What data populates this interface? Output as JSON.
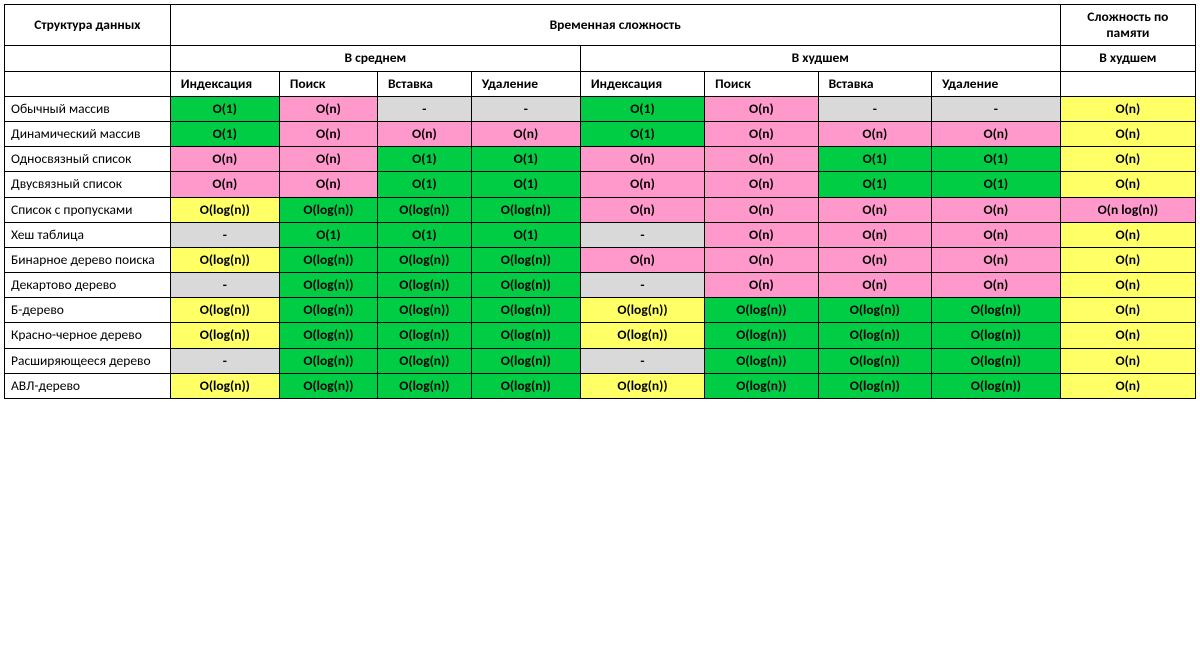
{
  "colors": {
    "green": "#00cc44",
    "yellow": "#ffff66",
    "pink": "#ff99cc",
    "gray": "#d9d9d9",
    "white": "#ffffff"
  },
  "colWidths": {
    "label": 152,
    "avg": [
      100,
      90,
      86,
      100
    ],
    "worst": [
      114,
      104,
      104,
      118
    ],
    "space": 124
  },
  "headers": {
    "structure": "Структура данных",
    "time": "Временная сложность",
    "space": "Сложность по памяти",
    "average": "В среднем",
    "worst": "В худшем",
    "spaceWorst": "В худшем",
    "ops": [
      "Индексация",
      "Поиск",
      "Вставка",
      "Удаление"
    ]
  },
  "rows": [
    {
      "name": "Обычный массив",
      "avg": [
        {
          "v": "O(1)",
          "c": "green"
        },
        {
          "v": "O(n)",
          "c": "pink"
        },
        {
          "v": "-",
          "c": "gray"
        },
        {
          "v": "-",
          "c": "gray"
        }
      ],
      "worst": [
        {
          "v": "O(1)",
          "c": "green"
        },
        {
          "v": "O(n)",
          "c": "pink"
        },
        {
          "v": "-",
          "c": "gray"
        },
        {
          "v": "-",
          "c": "gray"
        }
      ],
      "space": {
        "v": "O(n)",
        "c": "yellow"
      }
    },
    {
      "name": "Динамический массив",
      "avg": [
        {
          "v": "O(1)",
          "c": "green"
        },
        {
          "v": "O(n)",
          "c": "pink"
        },
        {
          "v": "O(n)",
          "c": "pink"
        },
        {
          "v": "O(n)",
          "c": "pink"
        }
      ],
      "worst": [
        {
          "v": "O(1)",
          "c": "green"
        },
        {
          "v": "O(n)",
          "c": "pink"
        },
        {
          "v": "O(n)",
          "c": "pink"
        },
        {
          "v": "O(n)",
          "c": "pink"
        }
      ],
      "space": {
        "v": "O(n)",
        "c": "yellow"
      }
    },
    {
      "name": "Односвязный список",
      "avg": [
        {
          "v": "O(n)",
          "c": "pink"
        },
        {
          "v": "O(n)",
          "c": "pink"
        },
        {
          "v": "O(1)",
          "c": "green"
        },
        {
          "v": "O(1)",
          "c": "green"
        }
      ],
      "worst": [
        {
          "v": "O(n)",
          "c": "pink"
        },
        {
          "v": "O(n)",
          "c": "pink"
        },
        {
          "v": "O(1)",
          "c": "green"
        },
        {
          "v": "O(1)",
          "c": "green"
        }
      ],
      "space": {
        "v": "O(n)",
        "c": "yellow"
      }
    },
    {
      "name": "Двусвязный список",
      "avg": [
        {
          "v": "O(n)",
          "c": "pink"
        },
        {
          "v": "O(n)",
          "c": "pink"
        },
        {
          "v": "O(1)",
          "c": "green"
        },
        {
          "v": "O(1)",
          "c": "green"
        }
      ],
      "worst": [
        {
          "v": "O(n)",
          "c": "pink"
        },
        {
          "v": "O(n)",
          "c": "pink"
        },
        {
          "v": "O(1)",
          "c": "green"
        },
        {
          "v": "O(1)",
          "c": "green"
        }
      ],
      "space": {
        "v": "O(n)",
        "c": "yellow"
      }
    },
    {
      "name": "Список с пропусками",
      "avg": [
        {
          "v": "O(log(n))",
          "c": "yellow"
        },
        {
          "v": "O(log(n))",
          "c": "green"
        },
        {
          "v": "O(log(n))",
          "c": "green"
        },
        {
          "v": "O(log(n))",
          "c": "green"
        }
      ],
      "worst": [
        {
          "v": "O(n)",
          "c": "pink"
        },
        {
          "v": "O(n)",
          "c": "pink"
        },
        {
          "v": "O(n)",
          "c": "pink"
        },
        {
          "v": "O(n)",
          "c": "pink"
        }
      ],
      "space": {
        "v": "O(n log(n))",
        "c": "pink"
      }
    },
    {
      "name": "Хеш таблица",
      "avg": [
        {
          "v": "-",
          "c": "gray"
        },
        {
          "v": "O(1)",
          "c": "green"
        },
        {
          "v": "O(1)",
          "c": "green"
        },
        {
          "v": "O(1)",
          "c": "green"
        }
      ],
      "worst": [
        {
          "v": "-",
          "c": "gray"
        },
        {
          "v": "O(n)",
          "c": "pink"
        },
        {
          "v": "O(n)",
          "c": "pink"
        },
        {
          "v": "O(n)",
          "c": "pink"
        }
      ],
      "space": {
        "v": "O(n)",
        "c": "yellow"
      }
    },
    {
      "name": "Бинарное дерево поиска",
      "avg": [
        {
          "v": "O(log(n))",
          "c": "yellow"
        },
        {
          "v": "O(log(n))",
          "c": "green"
        },
        {
          "v": "O(log(n))",
          "c": "green"
        },
        {
          "v": "O(log(n))",
          "c": "green"
        }
      ],
      "worst": [
        {
          "v": "O(n)",
          "c": "pink"
        },
        {
          "v": "O(n)",
          "c": "pink"
        },
        {
          "v": "O(n)",
          "c": "pink"
        },
        {
          "v": "O(n)",
          "c": "pink"
        }
      ],
      "space": {
        "v": "O(n)",
        "c": "yellow"
      }
    },
    {
      "name": "Декартово дерево",
      "avg": [
        {
          "v": "-",
          "c": "gray"
        },
        {
          "v": "O(log(n))",
          "c": "green"
        },
        {
          "v": "O(log(n))",
          "c": "green"
        },
        {
          "v": "O(log(n))",
          "c": "green"
        }
      ],
      "worst": [
        {
          "v": "-",
          "c": "gray"
        },
        {
          "v": "O(n)",
          "c": "pink"
        },
        {
          "v": "O(n)",
          "c": "pink"
        },
        {
          "v": "O(n)",
          "c": "pink"
        }
      ],
      "space": {
        "v": "O(n)",
        "c": "yellow"
      }
    },
    {
      "name": "Б-дерево",
      "avg": [
        {
          "v": "O(log(n))",
          "c": "yellow"
        },
        {
          "v": "O(log(n))",
          "c": "green"
        },
        {
          "v": "O(log(n))",
          "c": "green"
        },
        {
          "v": "O(log(n))",
          "c": "green"
        }
      ],
      "worst": [
        {
          "v": "O(log(n))",
          "c": "yellow"
        },
        {
          "v": "O(log(n))",
          "c": "green"
        },
        {
          "v": "O(log(n))",
          "c": "green"
        },
        {
          "v": "O(log(n))",
          "c": "green"
        }
      ],
      "space": {
        "v": "O(n)",
        "c": "yellow"
      }
    },
    {
      "name": "Красно-черное дерево",
      "avg": [
        {
          "v": "O(log(n))",
          "c": "yellow"
        },
        {
          "v": "O(log(n))",
          "c": "green"
        },
        {
          "v": "O(log(n))",
          "c": "green"
        },
        {
          "v": "O(log(n))",
          "c": "green"
        }
      ],
      "worst": [
        {
          "v": "O(log(n))",
          "c": "yellow"
        },
        {
          "v": "O(log(n))",
          "c": "green"
        },
        {
          "v": "O(log(n))",
          "c": "green"
        },
        {
          "v": "O(log(n))",
          "c": "green"
        }
      ],
      "space": {
        "v": "O(n)",
        "c": "yellow"
      }
    },
    {
      "name": "Расширяющееся дерево",
      "avg": [
        {
          "v": "-",
          "c": "gray"
        },
        {
          "v": "O(log(n))",
          "c": "green"
        },
        {
          "v": "O(log(n))",
          "c": "green"
        },
        {
          "v": "O(log(n))",
          "c": "green"
        }
      ],
      "worst": [
        {
          "v": "-",
          "c": "gray"
        },
        {
          "v": "O(log(n))",
          "c": "green"
        },
        {
          "v": "O(log(n))",
          "c": "green"
        },
        {
          "v": "O(log(n))",
          "c": "green"
        }
      ],
      "space": {
        "v": "O(n)",
        "c": "yellow"
      }
    },
    {
      "name": "АВЛ-дерево",
      "avg": [
        {
          "v": "O(log(n))",
          "c": "yellow"
        },
        {
          "v": "O(log(n))",
          "c": "green"
        },
        {
          "v": "O(log(n))",
          "c": "green"
        },
        {
          "v": "O(log(n))",
          "c": "green"
        }
      ],
      "worst": [
        {
          "v": "O(log(n))",
          "c": "yellow"
        },
        {
          "v": "O(log(n))",
          "c": "green"
        },
        {
          "v": "O(log(n))",
          "c": "green"
        },
        {
          "v": "O(log(n))",
          "c": "green"
        }
      ],
      "space": {
        "v": "O(n)",
        "c": "yellow"
      }
    }
  ]
}
